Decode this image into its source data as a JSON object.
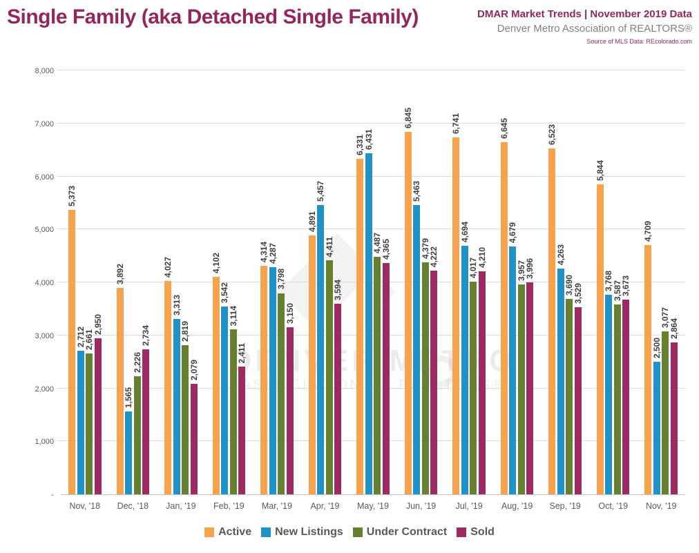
{
  "header": {
    "title": "Single Family (aka Detached Single Family)",
    "brand_line1": "DMAR Market Trends | November 2019 Data",
    "brand_line2": "Denver Metro Association of REALTORS®",
    "brand_line3": "Source of MLS Data: REcolorado.com"
  },
  "watermark": {
    "line1": "DENVER METRO",
    "line2": "ASSOCIATION OF REALTORS®"
  },
  "colors": {
    "title_magenta": "#93265C",
    "active_orange": "#F9A24D",
    "new_listings_blue": "#1F92C7",
    "under_contract_green": "#66802F",
    "sold_maroon": "#9D2A62",
    "axis_text_gray": "#595959",
    "value_label_gray": "#3F3F3F",
    "gridline_gray": "#DADADA"
  },
  "chart_data": {
    "type": "bar",
    "title": "Single Family (aka Detached Single Family)",
    "categories": [
      "Nov, '18",
      "Dec, '18",
      "Jan, '19",
      "Feb, '19",
      "Mar, '19",
      "Apr, '19",
      "May, '19",
      "Jun, '19",
      "Jul, '19",
      "Aug, '19",
      "Sep, '19",
      "Oct, '19",
      "Nov, '19"
    ],
    "series": [
      {
        "name": "Active",
        "color": "#F9A24D",
        "values": [
          5373,
          3892,
          4027,
          4102,
          4314,
          4891,
          6331,
          6845,
          6741,
          6645,
          6523,
          5844,
          4709
        ]
      },
      {
        "name": "New Listings",
        "color": "#1F92C7",
        "values": [
          2712,
          1565,
          3313,
          3542,
          4287,
          5457,
          6431,
          5463,
          4694,
          4679,
          4263,
          3768,
          2500
        ]
      },
      {
        "name": "Under Contract",
        "color": "#66802F",
        "values": [
          2661,
          2226,
          2819,
          3114,
          3798,
          4411,
          4487,
          4379,
          4017,
          3957,
          3690,
          3587,
          3077
        ]
      },
      {
        "name": "Sold",
        "color": "#9D2A62",
        "values": [
          2950,
          2734,
          2079,
          2411,
          3150,
          3594,
          4365,
          4222,
          4210,
          3996,
          3529,
          3673,
          2864
        ]
      }
    ],
    "ylim": [
      0,
      8000
    ],
    "ytick_step": 1000,
    "ytick_labels": [
      "-",
      "1,000",
      "2,000",
      "3,000",
      "4,000",
      "5,000",
      "6,000",
      "7,000",
      "8,000"
    ],
    "xlabel": "",
    "ylabel": "",
    "grid": true,
    "legend_position": "bottom",
    "value_labels": "rotated-90-above-bars"
  }
}
